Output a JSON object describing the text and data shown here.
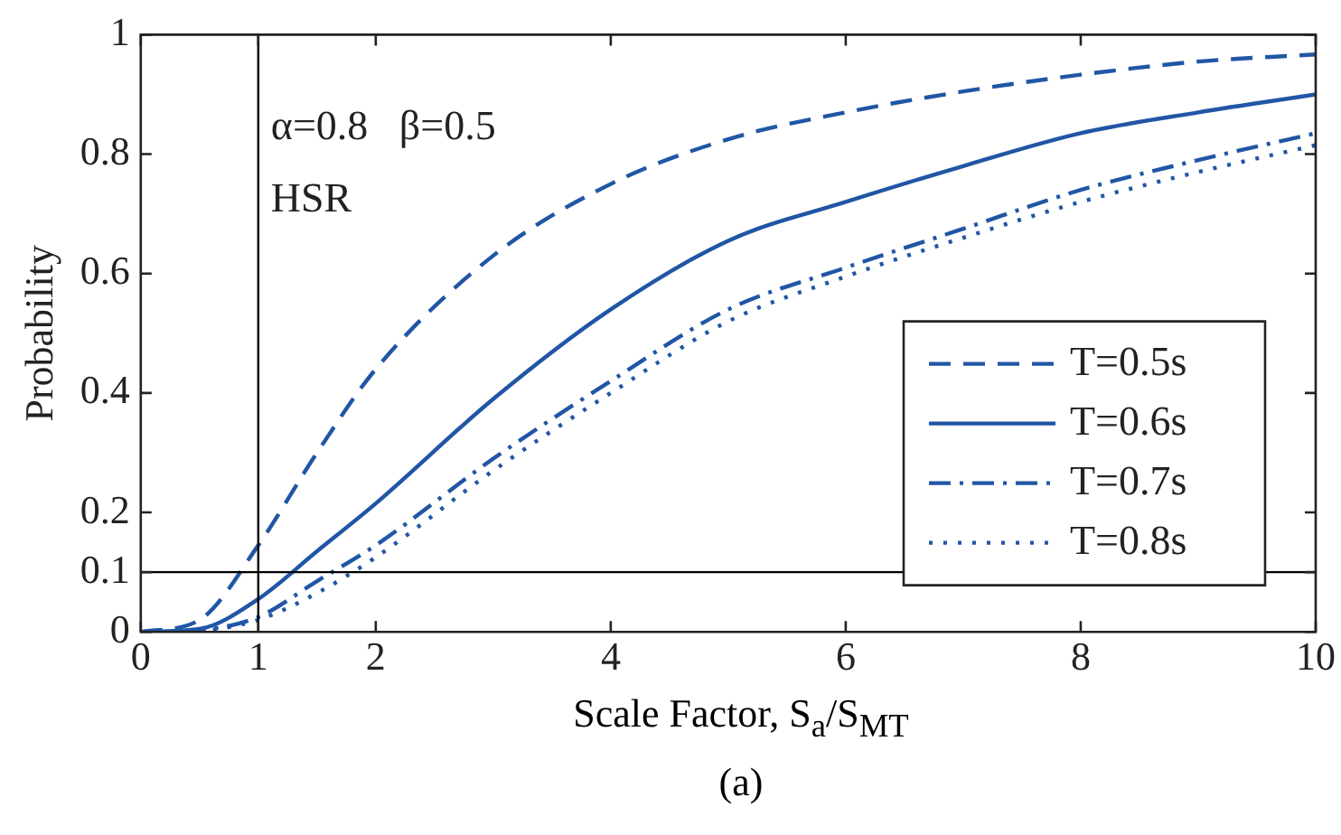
{
  "chart_data": {
    "type": "line",
    "xlabel": "Scale Factor, S$_{a}$/S$_{MT}$",
    "ylabel": "Probability",
    "x": [
      0,
      0.5,
      1,
      1.5,
      2,
      3,
      4,
      5,
      6,
      7,
      8,
      9,
      10
    ],
    "series": [
      {
        "name": "T=0.5s",
        "color": "#2156a5",
        "line_style": "dashed",
        "values": [
          0,
          0.02,
          0.145,
          0.3,
          0.44,
          0.63,
          0.75,
          0.825,
          0.87,
          0.905,
          0.933,
          0.955,
          0.967
        ]
      },
      {
        "name": "T=0.6s",
        "color": "#2156a5",
        "line_style": "solid",
        "values": [
          0,
          0.005,
          0.055,
          0.135,
          0.215,
          0.39,
          0.54,
          0.655,
          0.72,
          0.78,
          0.835,
          0.87,
          0.9
        ]
      },
      {
        "name": "T=0.7s",
        "color": "#2156a5",
        "line_style": "dashdot",
        "values": [
          0,
          0.003,
          0.025,
          0.085,
          0.145,
          0.29,
          0.42,
          0.54,
          0.61,
          0.675,
          0.74,
          0.79,
          0.835
        ]
      },
      {
        "name": "T=0.8s",
        "color": "#2156a5",
        "line_style": "dotted",
        "values": [
          0,
          0.002,
          0.02,
          0.065,
          0.125,
          0.27,
          0.4,
          0.52,
          0.595,
          0.66,
          0.72,
          0.77,
          0.815
        ]
      }
    ],
    "xlim": [
      0,
      10
    ],
    "xticks": [
      0,
      1,
      2,
      4,
      6,
      8,
      10
    ],
    "ylim": [
      0,
      1
    ],
    "yticks": [
      0,
      0.1,
      0.2,
      0.4,
      0.6,
      0.8,
      1
    ],
    "ref_lines": [
      {
        "axis": "x",
        "value": 1,
        "color": "#000000"
      },
      {
        "axis": "y",
        "value": 0.1,
        "color": "#000000"
      }
    ],
    "annotations": [
      "α=0.8   β=0.5",
      "HSR",
      "(a)"
    ],
    "legend": "right",
    "marker": "none",
    "grid": false
  }
}
